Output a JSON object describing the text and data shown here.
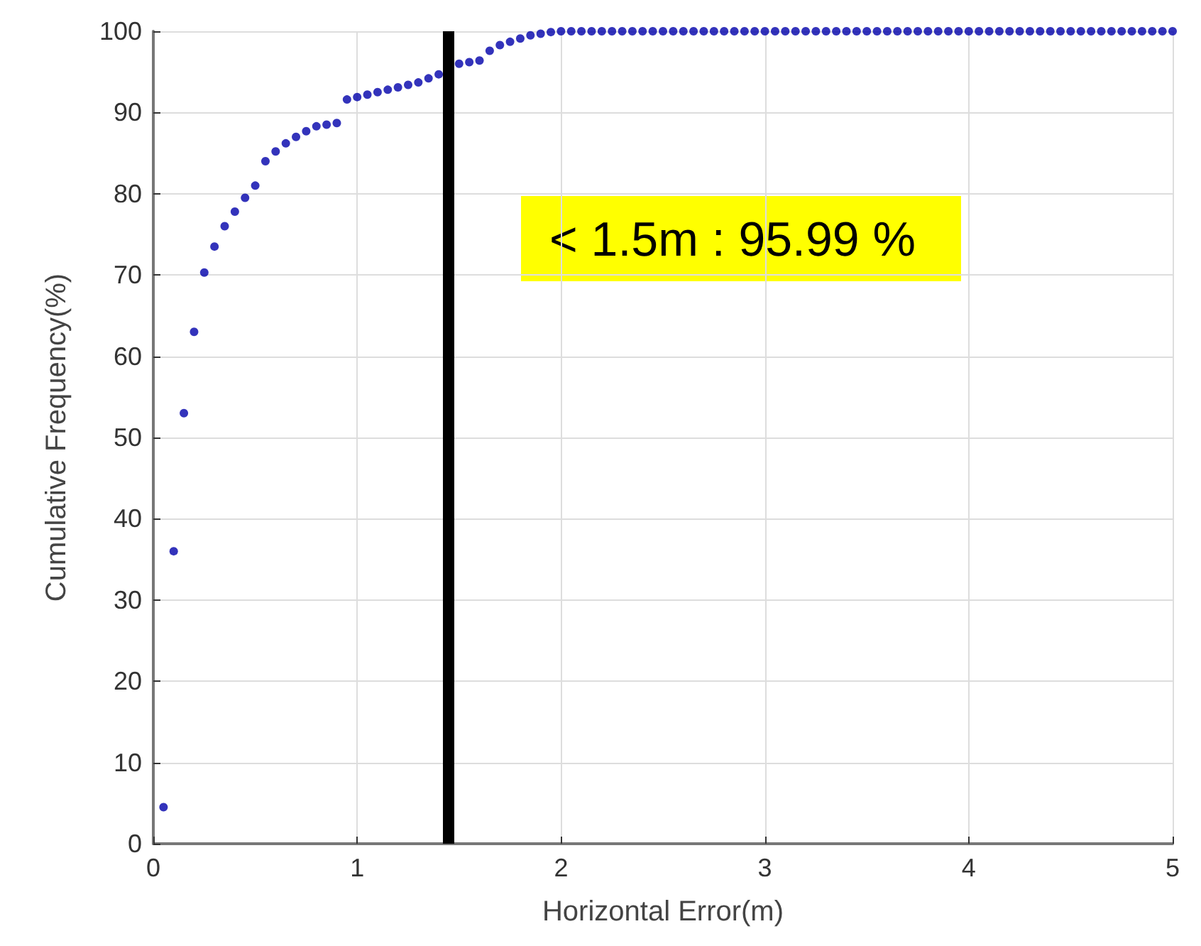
{
  "chart_data": {
    "type": "scatter",
    "xlabel": "Horizontal Error(m)",
    "ylabel": "Cumulative Frequency(%)",
    "x": [
      0.05,
      0.1,
      0.15,
      0.2,
      0.25,
      0.3,
      0.35,
      0.4,
      0.45,
      0.5,
      0.55,
      0.6,
      0.65,
      0.7,
      0.75,
      0.8,
      0.85,
      0.9,
      0.95,
      1.0,
      1.05,
      1.1,
      1.15,
      1.2,
      1.25,
      1.3,
      1.35,
      1.4,
      1.45,
      1.5,
      1.55,
      1.6,
      1.65,
      1.7,
      1.75,
      1.8,
      1.85,
      1.9,
      1.95,
      2.0,
      2.05,
      2.1,
      2.15,
      2.2,
      2.25,
      2.3,
      2.35,
      2.4,
      2.45,
      2.5,
      2.55,
      2.6,
      2.65,
      2.7,
      2.75,
      2.8,
      2.85,
      2.9,
      2.95,
      3.0,
      3.05,
      3.1,
      3.15,
      3.2,
      3.25,
      3.3,
      3.35,
      3.4,
      3.45,
      3.5,
      3.55,
      3.6,
      3.65,
      3.7,
      3.75,
      3.8,
      3.85,
      3.9,
      3.95,
      4.0,
      4.05,
      4.1,
      4.15,
      4.2,
      4.25,
      4.3,
      4.35,
      4.4,
      4.45,
      4.5,
      4.55,
      4.6,
      4.65,
      4.7,
      4.75,
      4.8,
      4.85,
      4.9,
      4.95,
      5.0
    ],
    "series": [
      {
        "color": "#0000aa",
        "values": [
          4.5,
          36,
          53,
          63,
          70.3,
          73.5,
          76,
          77.8,
          79.5,
          81,
          84,
          85.2,
          86.2,
          87,
          87.7,
          88.3,
          88.5,
          88.7,
          91.6,
          91.9,
          92.2,
          92.5,
          92.8,
          93.1,
          93.4,
          93.7,
          94.2,
          94.7,
          null,
          96.0,
          96.2,
          96.4,
          97.6,
          98.3,
          98.7,
          99.1,
          99.5,
          99.7,
          99.9,
          100,
          100,
          100,
          100,
          100,
          100,
          100,
          100,
          100,
          100,
          100,
          100,
          100,
          100,
          100,
          100,
          100,
          100,
          100,
          100,
          100,
          100,
          100,
          100,
          100,
          100,
          100,
          100,
          100,
          100,
          100,
          100,
          100,
          100,
          100,
          100,
          100,
          100,
          100,
          100,
          100,
          100,
          100,
          100,
          100,
          100,
          100,
          100,
          100,
          100,
          100,
          100,
          100,
          100,
          100,
          100,
          100,
          100,
          100,
          100,
          100
        ]
      }
    ],
    "xlim": [
      0,
      5
    ],
    "xticks": [
      0,
      1,
      2,
      3,
      4,
      5
    ],
    "ylim": [
      0,
      100
    ],
    "yticks": [
      0,
      10,
      20,
      30,
      40,
      50,
      60,
      70,
      80,
      90,
      100
    ],
    "ref_lines": [
      {
        "axis": "x",
        "value": 1.45,
        "color": "#000000"
      }
    ],
    "annotations": [
      "< 1.5m : 95.99 %"
    ],
    "grid": true,
    "marker": "circle"
  }
}
